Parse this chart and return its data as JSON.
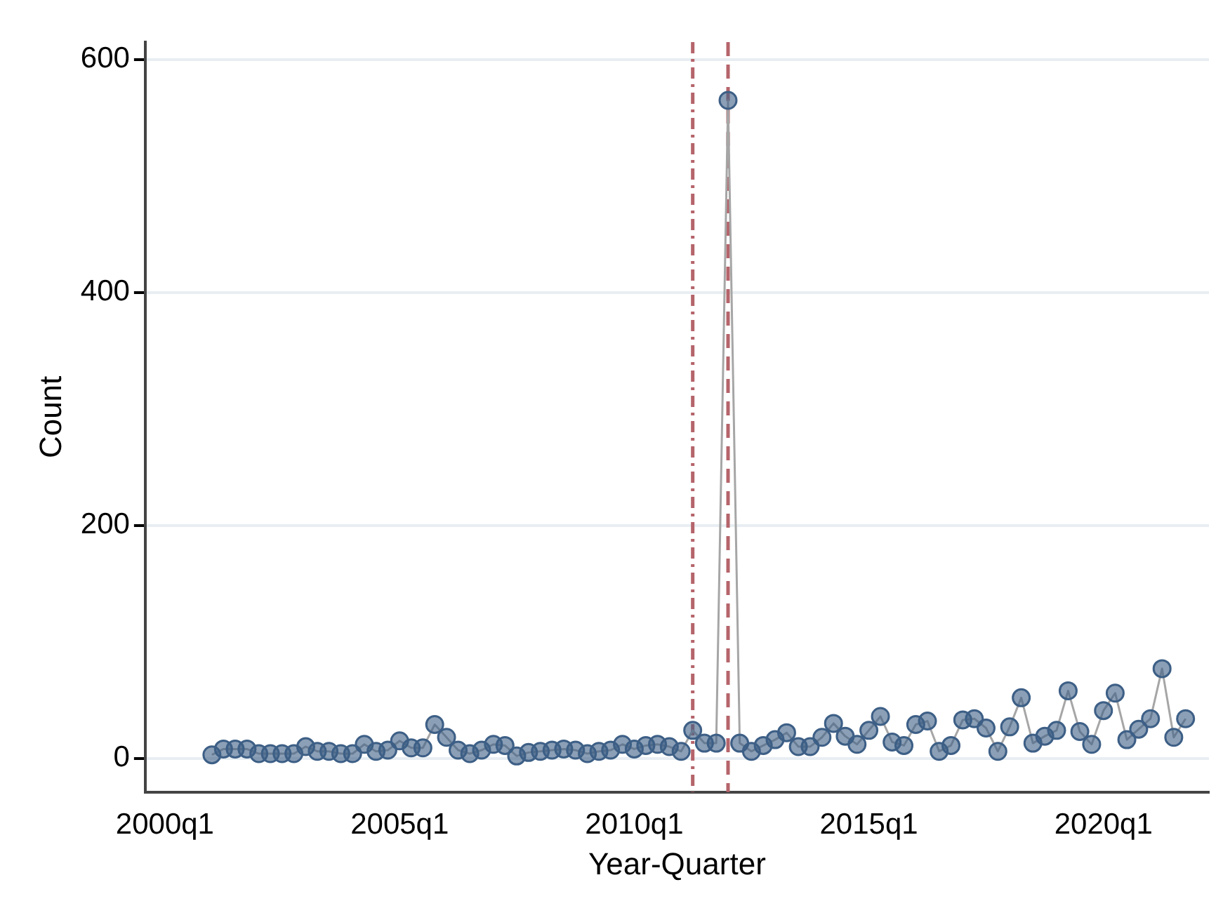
{
  "chart_data": {
    "type": "line",
    "xlabel": "Year-Quarter",
    "ylabel": "Count",
    "x": [
      "2001-01",
      "2001-04",
      "2001-07",
      "2001-10",
      "2002-01",
      "2002-04",
      "2002-07",
      "2002-10",
      "2003-01",
      "2003-04",
      "2003-07",
      "2003-10",
      "2004-01",
      "2004-04",
      "2004-07",
      "2004-10",
      "2005-01",
      "2005-04",
      "2005-07",
      "2005-10",
      "2006-01",
      "2006-04",
      "2006-07",
      "2006-10",
      "2007-01",
      "2007-04",
      "2007-07",
      "2007-10",
      "2008-01",
      "2008-04",
      "2008-07",
      "2008-10",
      "2009-01",
      "2009-04",
      "2009-07",
      "2009-10",
      "2010-01",
      "2010-04",
      "2010-07",
      "2010-10",
      "2011-01",
      "2011-04",
      "2011-07",
      "2011-10",
      "2012-01",
      "2012-04",
      "2012-07",
      "2012-10",
      "2013-01",
      "2013-04",
      "2013-07",
      "2013-10",
      "2014-01",
      "2014-04",
      "2014-07",
      "2014-10",
      "2015-01",
      "2015-04",
      "2015-07",
      "2015-10",
      "2016-01",
      "2016-04",
      "2016-07",
      "2016-10",
      "2017-01",
      "2017-04",
      "2017-07",
      "2017-10",
      "2018-01",
      "2018-04",
      "2018-07",
      "2018-10",
      "2019-01",
      "2019-04",
      "2019-07",
      "2019-10",
      "2020-01",
      "2020-04",
      "2020-07",
      "2020-10",
      "2021-01",
      "2021-04",
      "2021-07",
      "2021-10"
    ],
    "series": [
      {
        "color": "#3d5f86",
        "values": [
          3,
          8,
          8,
          8,
          4,
          4,
          4,
          4,
          10,
          6,
          6,
          4,
          4,
          12,
          6,
          7,
          15,
          9,
          9,
          29,
          18,
          7,
          4,
          7,
          12,
          11,
          2,
          5,
          6,
          7,
          8,
          7,
          4,
          6,
          7,
          12,
          8,
          11,
          12,
          10,
          6,
          24,
          13,
          13,
          565,
          13,
          6,
          11,
          16,
          22,
          10,
          10,
          18,
          30,
          19,
          12,
          24,
          36,
          14,
          11,
          29,
          32,
          6,
          11,
          33,
          34,
          26,
          6,
          27,
          52,
          13,
          19,
          24,
          58,
          23,
          12,
          41,
          56,
          16,
          25,
          34,
          77,
          18,
          34
        ]
      }
    ],
    "xlim": [
      "1999-08",
      "2022-04"
    ],
    "xticks": [
      {
        "value": "2000-01",
        "label": "2000q1"
      },
      {
        "value": "2005-01",
        "label": "2005q1"
      },
      {
        "value": "2010-01",
        "label": "2010q1"
      },
      {
        "value": "2015-01",
        "label": "2015q1"
      },
      {
        "value": "2020-01",
        "label": "2020q1"
      }
    ],
    "ylim": [
      -29,
      615
    ],
    "yticks": [
      0,
      200,
      400,
      600
    ],
    "ref_lines": [
      {
        "axis": "x",
        "value": "2011-04",
        "color": "#b5646b",
        "line_style": "dashdot"
      },
      {
        "axis": "x",
        "value": "2012-01",
        "color": "#b5646b",
        "line_style": "dashed"
      }
    ],
    "grid": "y",
    "legend": false,
    "marker": "circle",
    "line_style": "solid"
  }
}
